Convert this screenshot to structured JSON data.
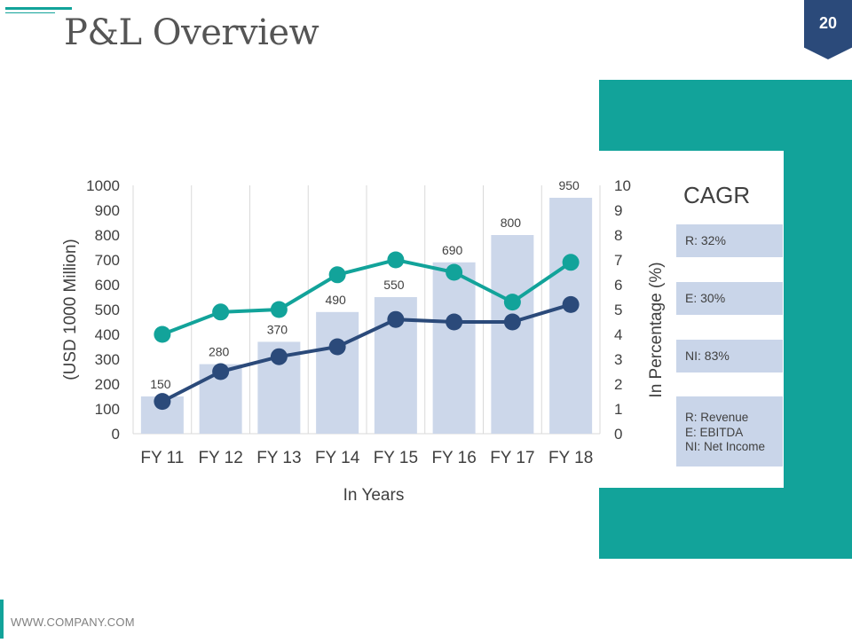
{
  "slide": {
    "title": "P&L Overview",
    "page_number": "20",
    "footer": "WWW.COMPANY.COM",
    "accent_color": "#12a39a",
    "badge_color": "#2b4a7a"
  },
  "cagr": {
    "title": "CAGR",
    "items": [
      "R: 32%",
      "E: 30%",
      "NI: 83%"
    ],
    "legend": [
      "R: Revenue",
      "E: EBITDA",
      "NI: Net Income"
    ]
  },
  "chart_data": {
    "type": "bar",
    "categories": [
      "FY 11",
      "FY 12",
      "FY 13",
      "FY 14",
      "FY 15",
      "FY 16",
      "FY 17",
      "FY 18"
    ],
    "xlabel": "In Years",
    "ylabel": "(USD 1000 Million)",
    "y2label": "In Percentage (%)",
    "ylim": [
      0,
      1000
    ],
    "y2lim": [
      0,
      10
    ],
    "yticks": [
      "0",
      "100",
      "200",
      "300",
      "400",
      "500",
      "600",
      "700",
      "800",
      "900",
      "1000"
    ],
    "y2ticks": [
      "0",
      "1",
      "2",
      "3",
      "4",
      "5",
      "6",
      "7",
      "8",
      "9",
      "10"
    ],
    "grid": "vertical",
    "series": [
      {
        "kind": "bar",
        "axis": "left",
        "color": "#ccd7ea",
        "values": [
          150,
          280,
          370,
          490,
          550,
          690,
          800,
          950
        ],
        "labels": [
          "150",
          "280",
          "370",
          "490",
          "550",
          "690",
          "800",
          "950"
        ]
      },
      {
        "kind": "line",
        "axis": "right",
        "color": "#12a39a",
        "values": [
          4.0,
          4.9,
          5.0,
          6.4,
          7.0,
          6.5,
          5.3,
          6.9
        ]
      },
      {
        "kind": "line",
        "axis": "right",
        "color": "#2b4a7a",
        "values": [
          1.3,
          2.5,
          3.1,
          3.5,
          4.6,
          4.5,
          4.5,
          5.2
        ]
      }
    ]
  }
}
